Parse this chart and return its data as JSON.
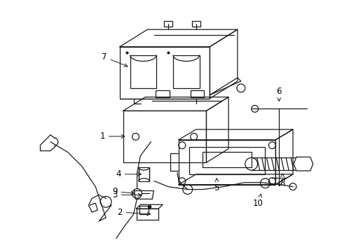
{
  "background_color": "#ffffff",
  "line_color": "#1a1a1a",
  "label_color": "#000000",
  "figsize": [
    4.89,
    3.6
  ],
  "dpi": 100
}
